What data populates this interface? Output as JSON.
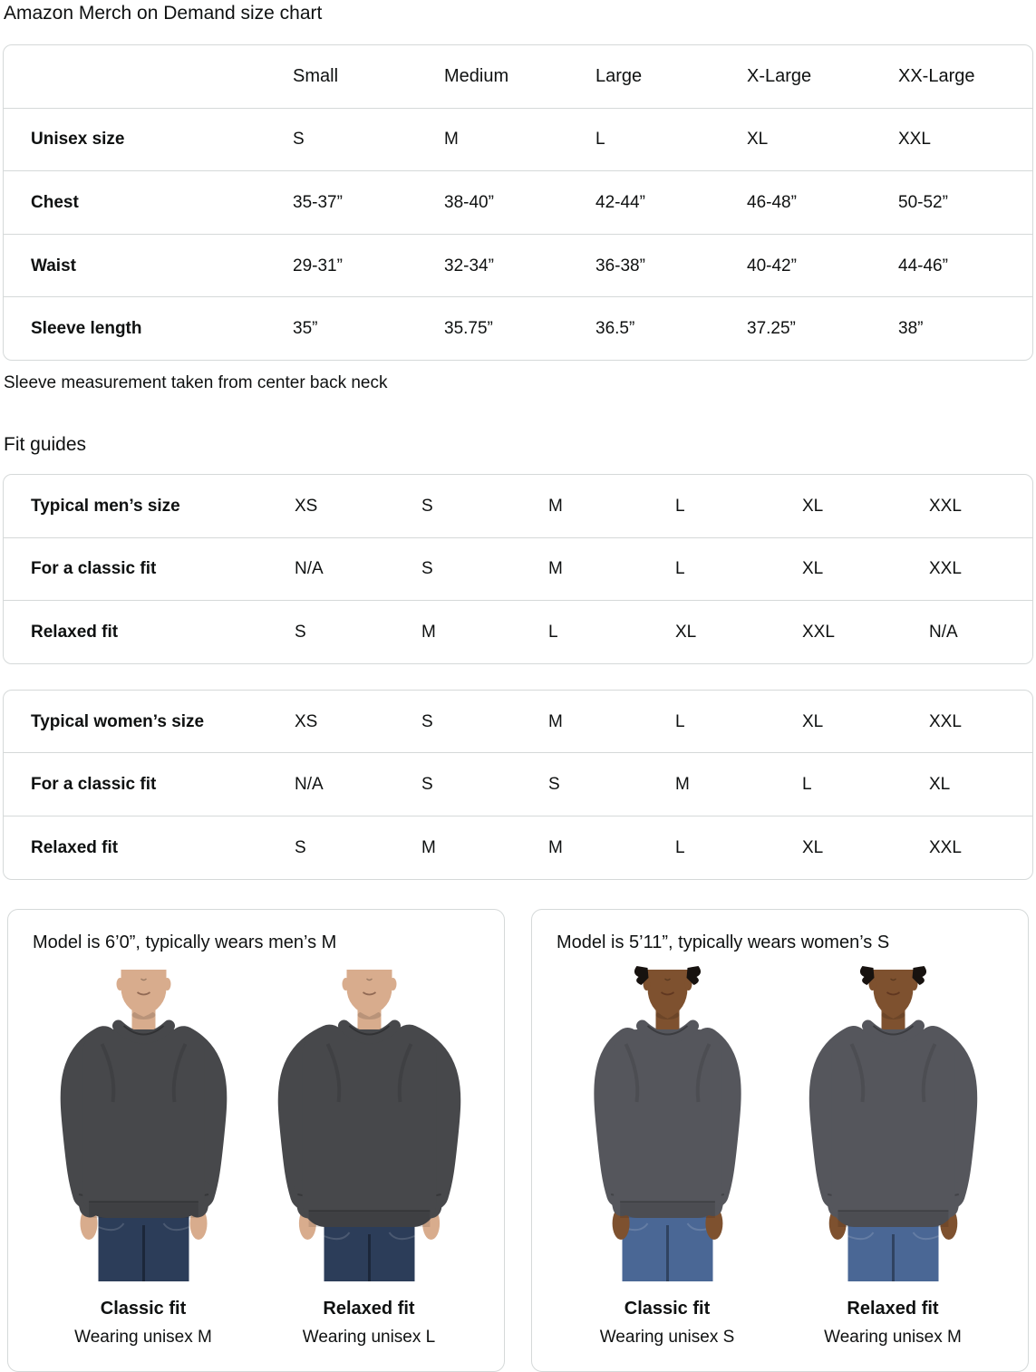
{
  "page_title": "Amazon Merch on Demand size chart",
  "size_chart": {
    "columns": [
      "",
      "Small",
      "Medium",
      "Large",
      "X-Large",
      "XX-Large"
    ],
    "rows": [
      {
        "label": "Unisex size",
        "values": [
          "S",
          "M",
          "L",
          "XL",
          "XXL"
        ]
      },
      {
        "label": "Chest",
        "values": [
          "35-37”",
          "38-40”",
          "42-44”",
          "46-48”",
          "50-52”"
        ]
      },
      {
        "label": "Waist",
        "values": [
          "29-31”",
          "32-34”",
          "36-38”",
          "40-42”",
          "44-46”"
        ]
      },
      {
        "label": "Sleeve length",
        "values": [
          "35”",
          "35.75”",
          "36.5”",
          "37.25”",
          "38”"
        ]
      }
    ]
  },
  "note": "Sleeve measurement taken from center back neck",
  "fit_guides_heading": "Fit guides",
  "mens_fit_table": {
    "rows": [
      {
        "label": "Typical men’s size",
        "values": [
          "XS",
          "S",
          "M",
          "L",
          "XL",
          "XXL"
        ]
      },
      {
        "label": "For a classic fit",
        "values": [
          "N/A",
          "S",
          "M",
          "L",
          "XL",
          "XXL"
        ]
      },
      {
        "label": "Relaxed fit",
        "values": [
          "S",
          "M",
          "L",
          "XL",
          "XXL",
          "N/A"
        ]
      }
    ]
  },
  "womens_fit_table": {
    "rows": [
      {
        "label": "Typical women’s size",
        "values": [
          "XS",
          "S",
          "M",
          "L",
          "XL",
          "XXL"
        ]
      },
      {
        "label": "For a classic fit",
        "values": [
          "N/A",
          "S",
          "S",
          "M",
          "L",
          "XL"
        ]
      },
      {
        "label": "Relaxed fit",
        "values": [
          "S",
          "M",
          "M",
          "L",
          "XL",
          "XXL"
        ]
      }
    ]
  },
  "model_cards": [
    {
      "title": "Model is 6’0”, typically wears men’s M",
      "model": "man",
      "photos": [
        {
          "fit_label": "Classic fit",
          "wearing": "Wearing unisex M",
          "relaxed": false
        },
        {
          "fit_label": "Relaxed fit",
          "wearing": "Wearing unisex L",
          "relaxed": true
        }
      ]
    },
    {
      "title": "Model is 5’11”, typically wears women’s S",
      "model": "woman",
      "photos": [
        {
          "fit_label": "Classic fit",
          "wearing": "Wearing unisex S",
          "relaxed": false
        },
        {
          "fit_label": "Relaxed fit",
          "wearing": "Wearing unisex M",
          "relaxed": true
        }
      ]
    }
  ],
  "colors": {
    "text": "#0F1111",
    "panel_border": "#D5D9D9",
    "sweatshirt_man": "#47484B",
    "sweatshirt_woman": "#55565C",
    "jeans_man": "#2C3D59",
    "jeans_woman": "#4A6795",
    "skin_man": "#D8AC8D",
    "skin_woman": "#7E512F",
    "hair_woman": "#17120F"
  }
}
